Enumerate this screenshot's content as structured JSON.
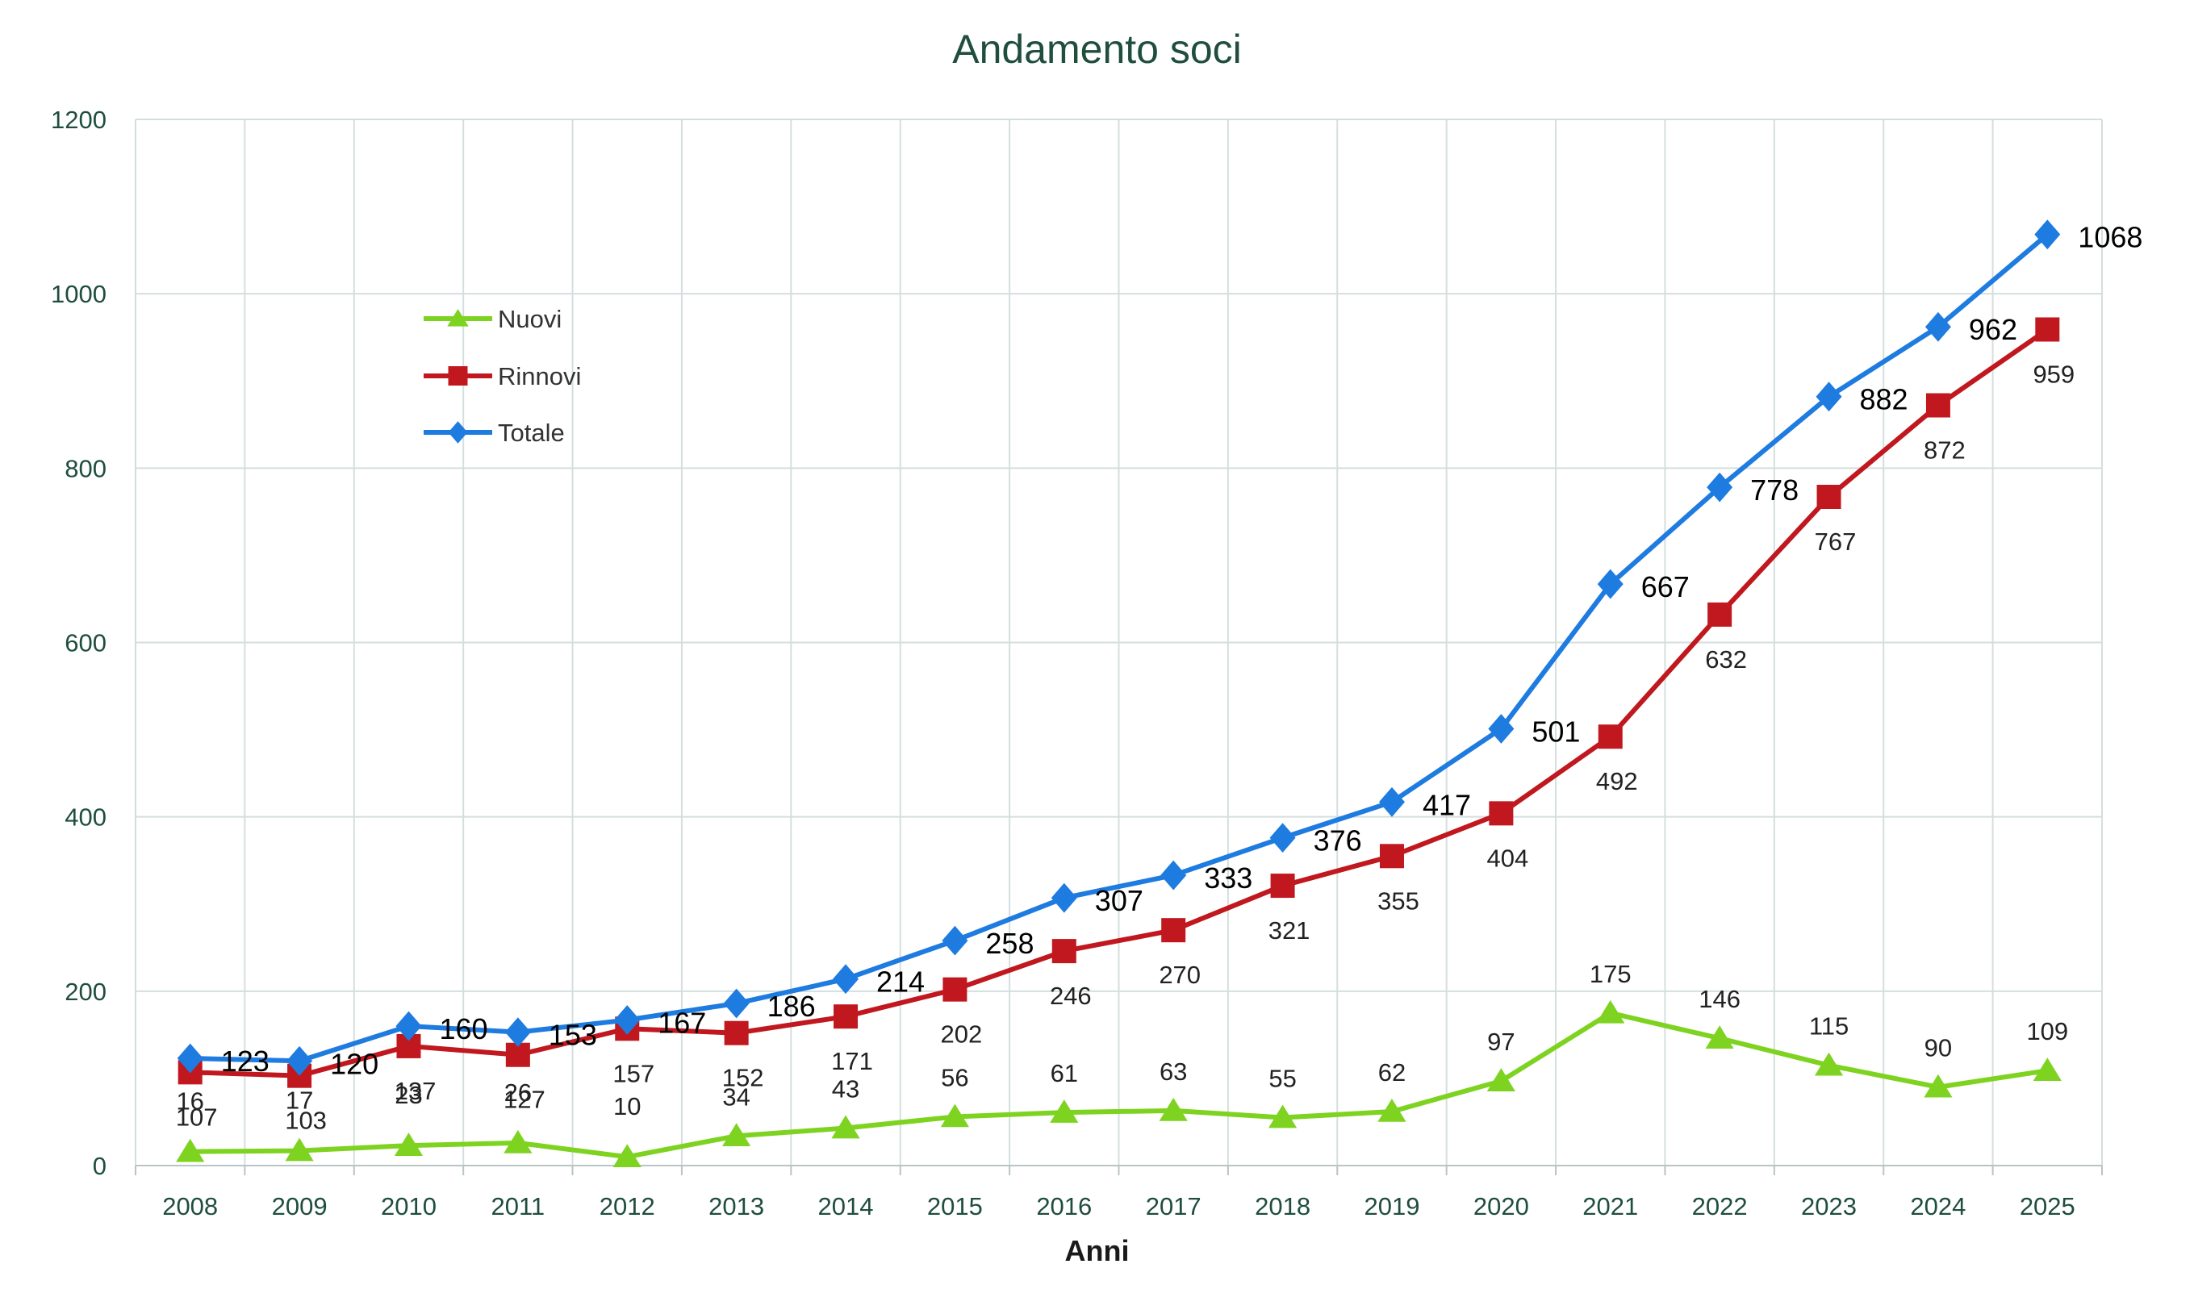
{
  "chart_data": {
    "type": "line",
    "title": "Andamento soci",
    "xlabel": "Anni",
    "ylabel": "",
    "ylim": [
      0,
      1200
    ],
    "yticks": [
      "0",
      "200",
      "400",
      "600",
      "800",
      "1000",
      "1200"
    ],
    "grid": true,
    "legend_position": "upper-left",
    "categories": [
      "2008",
      "2009",
      "2010",
      "2011",
      "2012",
      "2013",
      "2014",
      "2015",
      "2016",
      "2017",
      "2018",
      "2019",
      "2020",
      "2021",
      "2022",
      "2023",
      "2024",
      "2025"
    ],
    "series": [
      {
        "name": "Nuovi",
        "marker": "triangle",
        "color": "#7ed321",
        "values": [
          16,
          17,
          23,
          26,
          10,
          34,
          43,
          56,
          61,
          63,
          55,
          62,
          97,
          175,
          146,
          115,
          90,
          109
        ]
      },
      {
        "name": "Rinnovi",
        "marker": "square",
        "color": "#c0181e",
        "values": [
          107,
          103,
          137,
          127,
          157,
          152,
          171,
          202,
          246,
          270,
          321,
          355,
          404,
          492,
          632,
          767,
          872,
          959
        ]
      },
      {
        "name": "Totale",
        "marker": "diamond",
        "color": "#1e7be0",
        "values": [
          123,
          120,
          160,
          153,
          167,
          186,
          214,
          258,
          307,
          333,
          376,
          417,
          501,
          667,
          778,
          882,
          962,
          1068
        ]
      }
    ]
  }
}
